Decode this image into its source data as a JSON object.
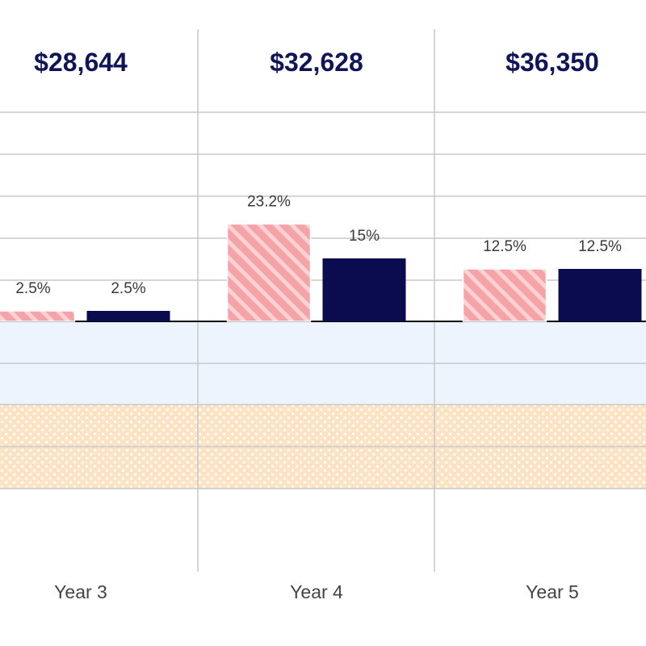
{
  "colors": {
    "series_a_fill": "#f6a3a8",
    "series_a_stripe": "#fbd3d5",
    "series_b_fill": "#0b0b4f",
    "total_text": "#101559",
    "blue_band": "#eef4fe",
    "orange_band": "#fde3c2",
    "orange_dot": "#ffffff",
    "gridline": "#c8c8c8",
    "zero_line": "#000000"
  },
  "chart_data": {
    "type": "bar",
    "categories": [
      "Year 3",
      "Year 4",
      "Year 5"
    ],
    "totals": [
      "$28,644",
      "$32,628",
      "$36,350"
    ],
    "series": [
      {
        "values": [
          2.5,
          23.2,
          12.5
        ],
        "labels": [
          "2.5%",
          "23.2%",
          "12.5%"
        ],
        "pattern": "diagonal-stripes"
      },
      {
        "values": [
          2.5,
          15,
          12.5
        ],
        "labels": [
          "2.5%",
          "15%",
          "12.5%"
        ],
        "pattern": "solid"
      }
    ],
    "grid": true,
    "legend": "none"
  }
}
